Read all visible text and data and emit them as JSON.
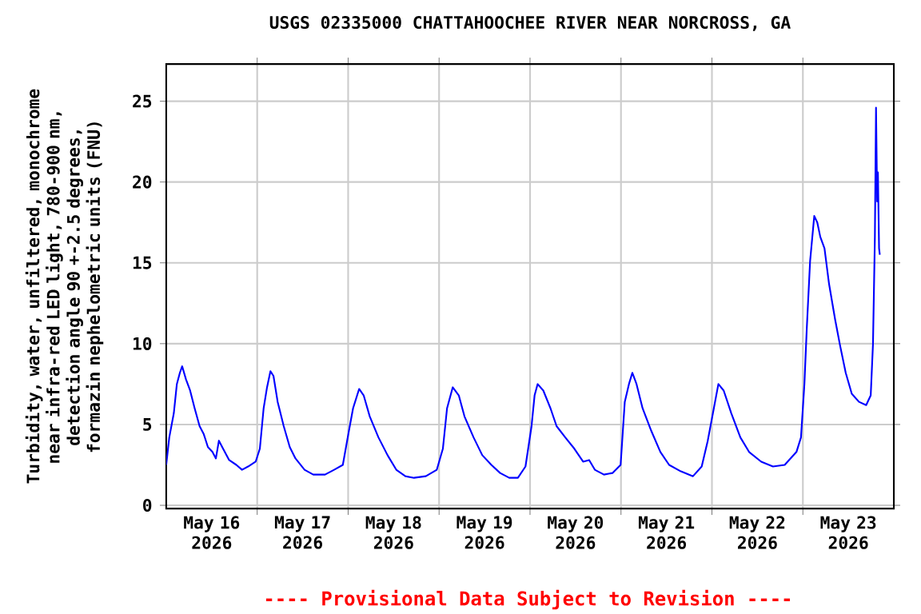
{
  "chart_data": {
    "type": "line",
    "title": "USGS 02335000 CHATTAHOOCHEE RIVER NEAR NORCROSS, GA",
    "ylabel": "Turbidity, water, unfiltered, monochrome near infra-red LED light, 780-900 nm, detection angle 90 +-2.5 degrees, formazin nephelometric units (FNU)",
    "annotations": [
      "---- Provisional Data Subject to Revision ----"
    ],
    "x": [
      "2026-05-16T00:00",
      "2026-05-16T00:48",
      "2026-05-16T02:00",
      "2026-05-16T02:48",
      "2026-05-16T03:36",
      "2026-05-16T04:12",
      "2026-05-16T05:12",
      "2026-05-16T06:18",
      "2026-05-16T07:30",
      "2026-05-16T08:48",
      "2026-05-16T09:54",
      "2026-05-16T11:00",
      "2026-05-16T12:12",
      "2026-05-16T13:06",
      "2026-05-16T13:54",
      "2026-05-16T15:00",
      "2026-05-16T16:36",
      "2026-05-16T18:30",
      "2026-05-16T20:00",
      "2026-05-16T21:36",
      "2026-05-16T23:36",
      "2026-05-17T00:42",
      "2026-05-17T01:42",
      "2026-05-17T02:36",
      "2026-05-17T03:30",
      "2026-05-17T04:18",
      "2026-05-17T05:24",
      "2026-05-17T07:00",
      "2026-05-17T08:36",
      "2026-05-17T10:06",
      "2026-05-17T12:30",
      "2026-05-17T14:48",
      "2026-05-17T17:54",
      "2026-05-17T20:18",
      "2026-05-17T22:36",
      "2026-05-18T00:12",
      "2026-05-18T01:18",
      "2026-05-18T02:54",
      "2026-05-18T04:06",
      "2026-05-18T05:42",
      "2026-05-18T08:00",
      "2026-05-18T10:24",
      "2026-05-18T12:42",
      "2026-05-18T15:06",
      "2026-05-18T17:24",
      "2026-05-18T20:30",
      "2026-05-18T23:24",
      "2026-05-19T01:00",
      "2026-05-19T02:06",
      "2026-05-19T03:36",
      "2026-05-19T05:12",
      "2026-05-19T06:42",
      "2026-05-19T09:06",
      "2026-05-19T11:24",
      "2026-05-19T13:48",
      "2026-05-19T16:06",
      "2026-05-19T18:30",
      "2026-05-19T20:48",
      "2026-05-19T22:48",
      "2026-05-20T00:24",
      "2026-05-20T01:12",
      "2026-05-20T02:00",
      "2026-05-20T03:30",
      "2026-05-20T05:24",
      "2026-05-20T07:00",
      "2026-05-20T09:18",
      "2026-05-20T11:42",
      "2026-05-20T14:00",
      "2026-05-20T15:36",
      "2026-05-20T17:06",
      "2026-05-20T19:30",
      "2026-05-20T21:48",
      "2026-05-20T23:54",
      "2026-05-21T01:00",
      "2026-05-21T02:06",
      "2026-05-21T03:00",
      "2026-05-21T04:06",
      "2026-05-21T05:42",
      "2026-05-21T08:00",
      "2026-05-21T10:24",
      "2026-05-21T12:42",
      "2026-05-21T15:48",
      "2026-05-21T19:00",
      "2026-05-21T21:18",
      "2026-05-21T22:54",
      "2026-05-22T00:30",
      "2026-05-22T01:42",
      "2026-05-22T03:06",
      "2026-05-22T05:06",
      "2026-05-22T07:30",
      "2026-05-22T09:48",
      "2026-05-22T13:00",
      "2026-05-22T16:06",
      "2026-05-22T19:12",
      "2026-05-22T22:18",
      "2026-05-22T23:30",
      "2026-05-23T00:24",
      "2026-05-23T01:00",
      "2026-05-23T01:54",
      "2026-05-23T03:00",
      "2026-05-23T03:48",
      "2026-05-23T04:36",
      "2026-05-23T05:42",
      "2026-05-23T06:54",
      "2026-05-23T08:30",
      "2026-05-23T09:48",
      "2026-05-23T11:18",
      "2026-05-23T12:54",
      "2026-05-23T14:48",
      "2026-05-23T16:42",
      "2026-05-23T17:54",
      "2026-05-23T18:30",
      "2026-05-23T19:00",
      "2026-05-23T19:18",
      "2026-05-23T19:36",
      "2026-05-23T19:48",
      "2026-05-23T20:06",
      "2026-05-23T20:18"
    ],
    "series": [
      {
        "color": "#0000ff",
        "values": [
          2.5,
          4.2,
          5.7,
          7.5,
          8.2,
          8.6,
          7.8,
          7.1,
          6.0,
          4.9,
          4.4,
          3.6,
          3.3,
          2.9,
          4.0,
          3.5,
          2.8,
          2.5,
          2.2,
          2.4,
          2.7,
          3.5,
          6.0,
          7.3,
          8.3,
          8.0,
          6.4,
          4.9,
          3.6,
          2.9,
          2.2,
          1.9,
          1.9,
          2.2,
          2.5,
          4.6,
          6.0,
          7.2,
          6.8,
          5.5,
          4.2,
          3.1,
          2.2,
          1.8,
          1.7,
          1.8,
          2.2,
          3.5,
          6.0,
          7.3,
          6.8,
          5.5,
          4.2,
          3.1,
          2.5,
          2.0,
          1.7,
          1.7,
          2.4,
          4.9,
          6.8,
          7.5,
          7.1,
          6.0,
          4.9,
          4.2,
          3.5,
          2.7,
          2.8,
          2.2,
          1.9,
          2.0,
          2.5,
          6.4,
          7.5,
          8.2,
          7.5,
          6.0,
          4.6,
          3.3,
          2.5,
          2.1,
          1.8,
          2.4,
          4.0,
          6.0,
          7.5,
          7.1,
          5.7,
          4.2,
          3.3,
          2.7,
          2.4,
          2.5,
          3.3,
          4.2,
          7.5,
          10.8,
          15.1,
          17.9,
          17.5,
          16.6,
          15.9,
          13.7,
          11.5,
          9.9,
          8.2,
          6.9,
          6.4,
          6.2,
          6.8,
          10.0,
          16.6,
          24.6,
          18.8,
          20.6,
          15.9,
          15.5
        ]
      }
    ],
    "xlim": [
      "2026-05-16T00:00",
      "2026-05-24T00:00"
    ],
    "xticks": [
      {
        "value": "2026-05-17T00:00",
        "label": null
      },
      {
        "value": "2026-05-18T00:00",
        "label": null
      },
      {
        "value": "2026-05-19T00:00",
        "label": null
      },
      {
        "value": "2026-05-20T00:00",
        "label": null
      },
      {
        "value": "2026-05-21T00:00",
        "label": null
      },
      {
        "value": "2026-05-22T00:00",
        "label": null
      },
      {
        "value": "2026-05-23T00:00",
        "label": null
      },
      {
        "value": "2026-05-16T12:00",
        "label": "May 16 2026"
      },
      {
        "value": "2026-05-17T12:00",
        "label": "May 17 2026"
      },
      {
        "value": "2026-05-18T12:00",
        "label": "May 18 2026"
      },
      {
        "value": "2026-05-19T12:00",
        "label": "May 19 2026"
      },
      {
        "value": "2026-05-20T12:00",
        "label": "May 20 2026"
      },
      {
        "value": "2026-05-21T12:00",
        "label": "May 21 2026"
      },
      {
        "value": "2026-05-22T12:00",
        "label": "May 22 2026"
      },
      {
        "value": "2026-05-23T12:00",
        "label": "May 23 2026"
      }
    ],
    "ylim": [
      -0.2,
      27.3
    ],
    "yticks": [
      0,
      5,
      10,
      15,
      20,
      25
    ],
    "grid": true
  }
}
